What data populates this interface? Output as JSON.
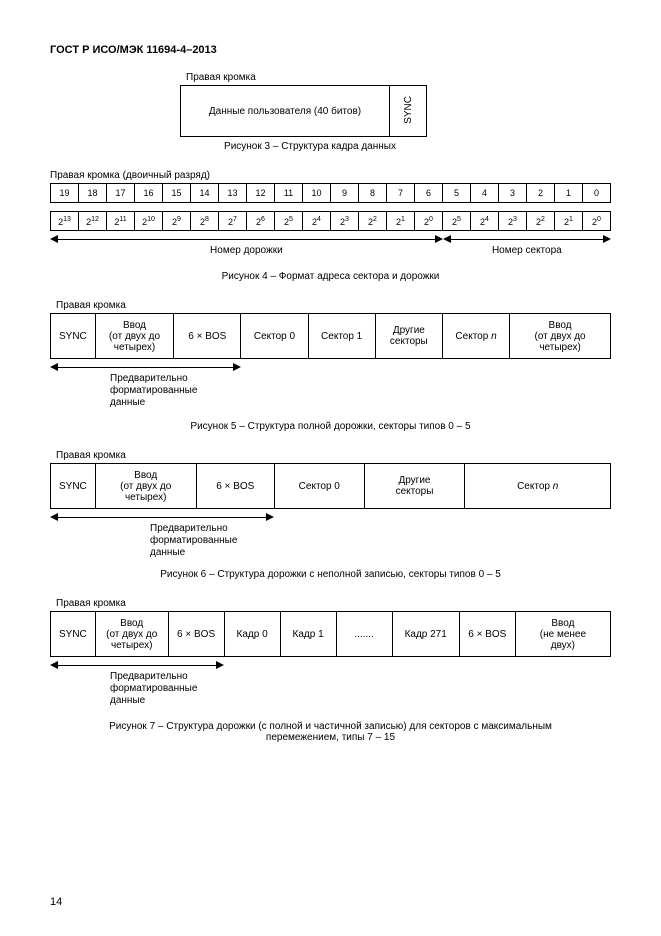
{
  "header": "ГОСТ Р ИСО/МЭК 11694-4–2013",
  "pageNumber": "14",
  "fig3": {
    "topLabel": "Правая кромка",
    "userData": "Данные пользователя (40 битов)",
    "sync": "SYNC",
    "caption": "Рисунок 3 – Структура кадра данных"
  },
  "fig4": {
    "topLabel": "Правая кромка (двоичный разряд)",
    "bits": [
      "19",
      "18",
      "17",
      "16",
      "15",
      "14",
      "13",
      "12",
      "11",
      "10",
      "9",
      "8",
      "7",
      "6",
      "5",
      "4",
      "3",
      "2",
      "1",
      "0"
    ],
    "expsBase": "2",
    "exps": [
      "13",
      "12",
      "11",
      "10",
      "9",
      "8",
      "7",
      "6",
      "5",
      "4",
      "3",
      "2",
      "1",
      "0",
      "5",
      "4",
      "3",
      "2",
      "1",
      "0"
    ],
    "trackLabel": "Номер дорожки",
    "sectorLabel": "Номер сектора",
    "caption": "Рисунок 4 – Формат адреса сектора и дорожки"
  },
  "fig5": {
    "topLabel": "Правая кромка",
    "sync": "SYNC",
    "lead": "Ввод\n(от двух до\nчетырех)",
    "bos": "6 × BOS",
    "s0": "Сектор 0",
    "s1": "Сектор 1",
    "other": "Другие\nсекторы",
    "sn_prefix": "Сектор ",
    "sn_n": "n",
    "leadout": "Ввод\n(от двух до\nчетырех)",
    "preformat": "Предварительно\nформатированные\nданные",
    "caption": "Рисунок 5 – Структура полной дорожки, секторы типов 0 – 5"
  },
  "fig6": {
    "topLabel": "Правая кромка",
    "sync": "SYNC",
    "lead": "Ввод\n(от двух до\nчетырех)",
    "bos": "6 × BOS",
    "s0": "Сектор 0",
    "other": "Другие\nсекторы",
    "sn_prefix": "Сектор ",
    "sn_n": "n",
    "preformat": "Предварительно\nформатированные\nданные",
    "caption": "Рисунок 6 – Структура дорожки с неполной записью, секторы типов 0 – 5"
  },
  "fig7": {
    "topLabel": "Правая кромка",
    "sync": "SYNC",
    "lead": "Ввод\n(от двух до\nчетырех)",
    "bos1": "6 × BOS",
    "k0": "Кадр 0",
    "k1": "Кадр 1",
    "dots": ".......",
    "k271": "Кадр 271",
    "bos2": "6 × BOS",
    "leadout": "Ввод\n(не менее\nдвух)",
    "preformat": "Предварительно\nформатированные\nданные",
    "caption": "Рисунок 7 – Структура дорожки (с полной и частичной записью) для секторов с максимальным\nперемежением, типы 7 – 15"
  }
}
